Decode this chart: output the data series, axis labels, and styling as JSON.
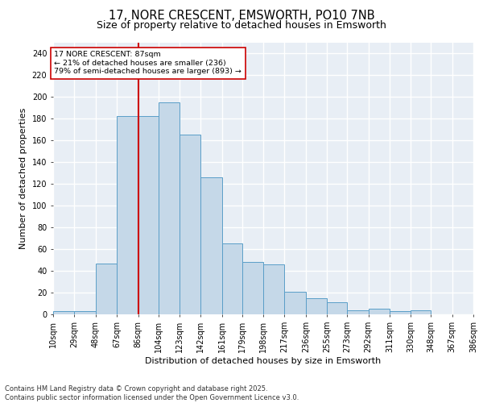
{
  "title1": "17, NORE CRESCENT, EMSWORTH, PO10 7NB",
  "title2": "Size of property relative to detached houses in Emsworth",
  "xlabel": "Distribution of detached houses by size in Emsworth",
  "ylabel": "Number of detached properties",
  "bin_edges": [
    10,
    29,
    48,
    67,
    86,
    104,
    123,
    142,
    161,
    179,
    198,
    217,
    236,
    255,
    273,
    292,
    311,
    330,
    348,
    367,
    386
  ],
  "bar_heights": [
    3,
    3,
    47,
    182,
    182,
    195,
    165,
    126,
    65,
    48,
    46,
    21,
    15,
    11,
    4,
    5,
    3,
    4,
    0,
    0
  ],
  "bar_color": "#c5d8e8",
  "bar_edge_color": "#5a9ec8",
  "background_color": "#e8eef5",
  "grid_color": "#ffffff",
  "vline_x": 86,
  "vline_color": "#cc0000",
  "annotation_text": "17 NORE CRESCENT: 87sqm\n← 21% of detached houses are smaller (236)\n79% of semi-detached houses are larger (893) →",
  "annotation_box_color": "#ffffff",
  "annotation_box_edge": "#cc0000",
  "ylim": [
    0,
    250
  ],
  "yticks": [
    0,
    20,
    40,
    60,
    80,
    100,
    120,
    140,
    160,
    180,
    200,
    220,
    240
  ],
  "footer_text": "Contains HM Land Registry data © Crown copyright and database right 2025.\nContains public sector information licensed under the Open Government Licence v3.0.",
  "title_fontsize": 10.5,
  "subtitle_fontsize": 9,
  "label_fontsize": 8,
  "tick_fontsize": 7,
  "footer_fontsize": 6
}
